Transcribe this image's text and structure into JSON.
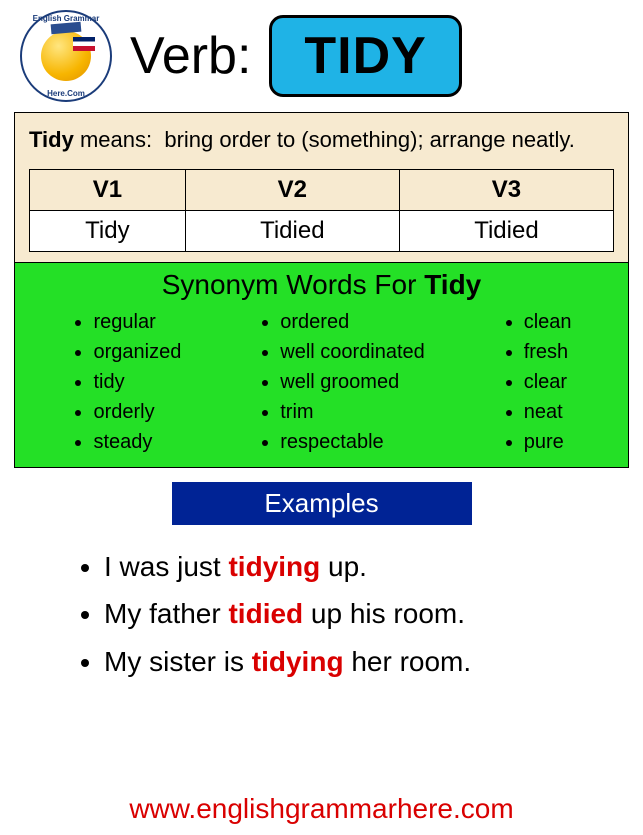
{
  "header": {
    "label": "Verb:",
    "word": "TIDY",
    "box_bg": "#1fb3e6",
    "box_border": "#000000"
  },
  "logo": {
    "top_text": "English Grammar",
    "bottom_text": "Here.Com"
  },
  "definition": {
    "term": "Tidy",
    "means_label": "means:",
    "text": "bring order to (something); arrange neatly.",
    "bg": "#f7ead0",
    "forms": {
      "headers": [
        "V1",
        "V2",
        "V3"
      ],
      "values": [
        "Tidy",
        "Tidied",
        "Tidied"
      ]
    }
  },
  "synonyms": {
    "title_prefix": "Synonym Words For ",
    "title_word": "Tidy",
    "bg": "#24e026",
    "columns": [
      [
        "regular",
        "organized",
        "tidy",
        "orderly",
        "steady"
      ],
      [
        "ordered",
        "well coordinated",
        "well groomed",
        "trim",
        "respectable"
      ],
      [
        "clean",
        "fresh",
        "clear",
        "neat",
        "pure"
      ]
    ]
  },
  "examples": {
    "header": "Examples",
    "header_bg": "#002395",
    "highlight_color": "#d90000",
    "items": [
      {
        "pre": "I was just ",
        "hl": "tidying",
        "post": " up."
      },
      {
        "pre": "My father ",
        "hl": "tidied",
        "post": " up his room."
      },
      {
        "pre": "My sister is ",
        "hl": "tidying",
        "post": " her room."
      }
    ]
  },
  "footer": {
    "url": "www.englishgrammarhere.com",
    "color": "#d90000"
  }
}
